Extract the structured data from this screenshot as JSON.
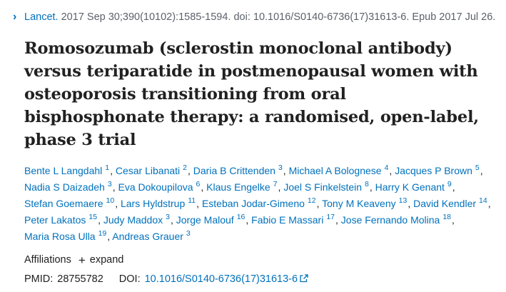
{
  "citation": {
    "journal": "Lancet.",
    "details": "2017 Sep 30;390(10102):1585-1594. doi: 10.1016/S0140-6736(17)31613-6. Epub 2017 Jul 26."
  },
  "title": "Romosozumab (sclerostin monoclonal antibody) versus teriparatide in postmenopausal women with osteoporosis transitioning from oral bisphosphonate therapy: a randomised, open-label, phase 3 trial",
  "authors": [
    {
      "name": "Bente L Langdahl",
      "aff": "1"
    },
    {
      "name": "Cesar Libanati",
      "aff": "2"
    },
    {
      "name": "Daria B Crittenden",
      "aff": "3"
    },
    {
      "name": "Michael A Bolognese",
      "aff": "4"
    },
    {
      "name": "Jacques P Brown",
      "aff": "5"
    },
    {
      "name": "Nadia S Daizadeh",
      "aff": "3"
    },
    {
      "name": "Eva Dokoupilova",
      "aff": "6"
    },
    {
      "name": "Klaus Engelke",
      "aff": "7"
    },
    {
      "name": "Joel S Finkelstein",
      "aff": "8"
    },
    {
      "name": "Harry K Genant",
      "aff": "9"
    },
    {
      "name": "Stefan Goemaere",
      "aff": "10"
    },
    {
      "name": "Lars Hyldstrup",
      "aff": "11"
    },
    {
      "name": "Esteban Jodar-Gimeno",
      "aff": "12"
    },
    {
      "name": "Tony M Keaveny",
      "aff": "13"
    },
    {
      "name": "David Kendler",
      "aff": "14"
    },
    {
      "name": "Peter Lakatos",
      "aff": "15"
    },
    {
      "name": "Judy Maddox",
      "aff": "3"
    },
    {
      "name": "Jorge Malouf",
      "aff": "16"
    },
    {
      "name": "Fabio E Massari",
      "aff": "17"
    },
    {
      "name": "Jose Fernando Molina",
      "aff": "18"
    },
    {
      "name": "Maria Rosa Ulla",
      "aff": "19"
    },
    {
      "name": "Andreas Grauer",
      "aff": "3"
    }
  ],
  "affiliations": {
    "label": "Affiliations",
    "expand_label": "expand"
  },
  "ids": {
    "pmid_label": "PMID:",
    "pmid": "28755782",
    "doi_label": "DOI:",
    "doi": "10.1016/S0140-6736(17)31613-6"
  },
  "icons": {
    "chevron": "chevron-right-icon",
    "plus": "plus-icon",
    "external": "external-link-icon"
  },
  "colors": {
    "link": "#0071bc",
    "text": "#212121",
    "muted": "#5b616b"
  }
}
